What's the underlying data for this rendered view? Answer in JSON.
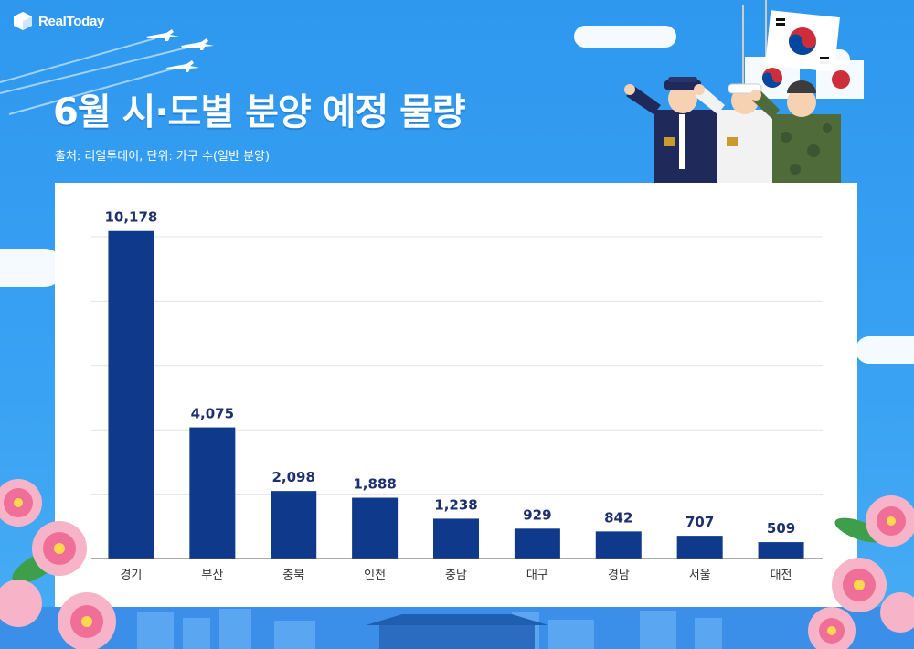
{
  "brand": {
    "logo_text": "RealToday"
  },
  "header": {
    "title": "6월 시·도별 분양 예정 물량",
    "source": "출처: 리얼투데이, 단위: 가구 수(일반 분양)"
  },
  "colors": {
    "background": "#2f9bf0",
    "bar": "#0f3a8c",
    "value_label": "#1e2f6e"
  },
  "chart_data": {
    "type": "bar",
    "title": "6월 시·도별 분양 예정 물량",
    "xlabel": "",
    "ylabel": "",
    "categories": [
      "경기",
      "부산",
      "충북",
      "인천",
      "충남",
      "대구",
      "경남",
      "서울",
      "대전"
    ],
    "values": [
      10178,
      4075,
      2098,
      1888,
      1238,
      929,
      842,
      707,
      509
    ],
    "value_labels": [
      "10,178",
      "4,075",
      "2,098",
      "1,888",
      "1,238",
      "929",
      "842",
      "707",
      "509"
    ],
    "ylim": [
      0,
      10000
    ],
    "grid": true,
    "legend": "none"
  }
}
